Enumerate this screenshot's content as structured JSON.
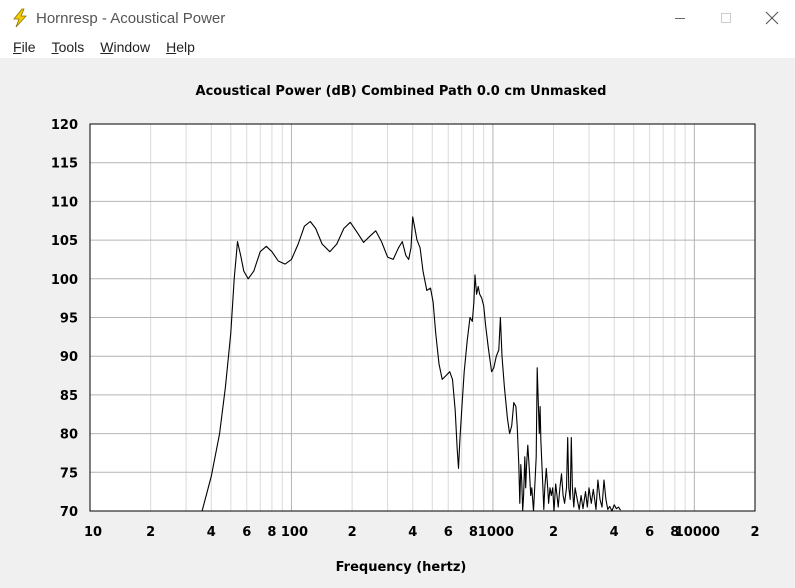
{
  "window": {
    "title": "Hornresp - Acoustical Power",
    "icon": "lightning-icon",
    "accent": "#f5d000"
  },
  "menu": {
    "items": [
      {
        "label": "File",
        "u": "F",
        "rest": "ile"
      },
      {
        "label": "Tools",
        "u": "T",
        "rest": "ools"
      },
      {
        "label": "Window",
        "u": "W",
        "rest": "indow"
      },
      {
        "label": "Help",
        "u": "H",
        "rest": "elp"
      }
    ]
  },
  "chart_data": {
    "type": "line",
    "title": "Acoustical Power (dB)   Combined   Path 0.0 cm   Unmasked",
    "xlabel": "Frequency (hertz)",
    "ylabel": "",
    "x_scale": "log",
    "xlim": [
      10,
      20000
    ],
    "ylim": [
      70,
      120
    ],
    "y_ticks": [
      "120",
      "115",
      "110",
      "105",
      "100",
      "95",
      "90",
      "85",
      "80",
      "75",
      "70"
    ],
    "x_ticks": [
      {
        "v": 10,
        "label": "10"
      },
      {
        "v": 20,
        "label": "2"
      },
      {
        "v": 40,
        "label": "4"
      },
      {
        "v": 60,
        "label": "6"
      },
      {
        "v": 80,
        "label": "8"
      },
      {
        "v": 100,
        "label": "100"
      },
      {
        "v": 200,
        "label": "2"
      },
      {
        "v": 400,
        "label": "4"
      },
      {
        "v": 600,
        "label": "6"
      },
      {
        "v": 800,
        "label": "8"
      },
      {
        "v": 1000,
        "label": "1000"
      },
      {
        "v": 2000,
        "label": "2"
      },
      {
        "v": 4000,
        "label": "4"
      },
      {
        "v": 6000,
        "label": "6"
      },
      {
        "v": 8000,
        "label": "8"
      },
      {
        "v": 10000,
        "label": "10000"
      },
      {
        "v": 20000,
        "label": "2"
      }
    ],
    "grid": true,
    "series": [
      {
        "color": "#000000",
        "points": [
          [
            36.0,
            70.0
          ],
          [
            40,
            74.5
          ],
          [
            44,
            80
          ],
          [
            47,
            86
          ],
          [
            50,
            93
          ],
          [
            52,
            100
          ],
          [
            54,
            104.8
          ],
          [
            56,
            103
          ],
          [
            58,
            101
          ],
          [
            61,
            100
          ],
          [
            65,
            101
          ],
          [
            70,
            103.5
          ],
          [
            75,
            104.2
          ],
          [
            80,
            103.5
          ],
          [
            86,
            102.3
          ],
          [
            93,
            101.9
          ],
          [
            100,
            102.5
          ],
          [
            108,
            104.5
          ],
          [
            116,
            106.8
          ],
          [
            124,
            107.4
          ],
          [
            132,
            106.5
          ],
          [
            142,
            104.5
          ],
          [
            155,
            103.5
          ],
          [
            168,
            104.5
          ],
          [
            182,
            106.5
          ],
          [
            196,
            107.3
          ],
          [
            212,
            106
          ],
          [
            228,
            104.7
          ],
          [
            245,
            105.5
          ],
          [
            262,
            106.2
          ],
          [
            280,
            104.8
          ],
          [
            300,
            102.8
          ],
          [
            320,
            102.5
          ],
          [
            340,
            104
          ],
          [
            355,
            104.8
          ],
          [
            370,
            103
          ],
          [
            382,
            102.5
          ],
          [
            392,
            104
          ],
          [
            400,
            108
          ],
          [
            410,
            106.5
          ],
          [
            420,
            105
          ],
          [
            435,
            104
          ],
          [
            450,
            101
          ],
          [
            470,
            98.5
          ],
          [
            490,
            98.8
          ],
          [
            505,
            97
          ],
          [
            520,
            93
          ],
          [
            540,
            89
          ],
          [
            560,
            87
          ],
          [
            585,
            87.5
          ],
          [
            610,
            88
          ],
          [
            630,
            87
          ],
          [
            650,
            83
          ],
          [
            665,
            78
          ],
          [
            675,
            75.5
          ],
          [
            685,
            79
          ],
          [
            700,
            83
          ],
          [
            720,
            88
          ],
          [
            745,
            92
          ],
          [
            770,
            95
          ],
          [
            790,
            94.5
          ],
          [
            805,
            97
          ],
          [
            815,
            100.5
          ],
          [
            830,
            98
          ],
          [
            845,
            99
          ],
          [
            860,
            98
          ],
          [
            880,
            97.5
          ],
          [
            900,
            96.5
          ],
          [
            920,
            94
          ],
          [
            950,
            91
          ],
          [
            985,
            88
          ],
          [
            1010,
            88.5
          ],
          [
            1040,
            90
          ],
          [
            1070,
            90.8
          ],
          [
            1090,
            95
          ],
          [
            1110,
            90
          ],
          [
            1140,
            86
          ],
          [
            1180,
            82
          ],
          [
            1210,
            80
          ],
          [
            1240,
            81
          ],
          [
            1270,
            84
          ],
          [
            1300,
            83.5
          ],
          [
            1320,
            81
          ],
          [
            1345,
            76
          ],
          [
            1360,
            71
          ],
          [
            1375,
            76
          ],
          [
            1390,
            74
          ],
          [
            1405,
            70
          ],
          [
            1420,
            72
          ],
          [
            1440,
            77
          ],
          [
            1455,
            73
          ],
          [
            1470,
            76
          ],
          [
            1490,
            78.5
          ],
          [
            1520,
            75
          ],
          [
            1540,
            72
          ],
          [
            1560,
            73
          ],
          [
            1590,
            70
          ],
          [
            1620,
            74
          ],
          [
            1640,
            77
          ],
          [
            1660,
            88.5
          ],
          [
            1680,
            84
          ],
          [
            1700,
            80
          ],
          [
            1715,
            83.5
          ],
          [
            1730,
            79
          ],
          [
            1750,
            76
          ],
          [
            1770,
            73
          ],
          [
            1790,
            70.2
          ],
          [
            1810,
            73
          ],
          [
            1840,
            75.5
          ],
          [
            1870,
            73
          ],
          [
            1890,
            71
          ],
          [
            1920,
            73
          ],
          [
            1950,
            72
          ],
          [
            1980,
            73
          ],
          [
            2010,
            70
          ],
          [
            2050,
            73.5
          ],
          [
            2080,
            72
          ],
          [
            2110,
            70.5
          ],
          [
            2150,
            73
          ],
          [
            2190,
            74.8
          ],
          [
            2230,
            72
          ],
          [
            2270,
            71
          ],
          [
            2320,
            73
          ],
          [
            2350,
            79.5
          ],
          [
            2380,
            73
          ],
          [
            2420,
            71.5
          ],
          [
            2450,
            79.5
          ],
          [
            2480,
            73
          ],
          [
            2520,
            70.5
          ],
          [
            2560,
            73
          ],
          [
            2620,
            71.5
          ],
          [
            2680,
            70.2
          ],
          [
            2740,
            72
          ],
          [
            2800,
            70.3
          ],
          [
            2880,
            72.5
          ],
          [
            2940,
            70.5
          ],
          [
            3000,
            73
          ],
          [
            3080,
            71
          ],
          [
            3150,
            72.8
          ],
          [
            3250,
            70.2
          ],
          [
            3320,
            74
          ],
          [
            3400,
            71.5
          ],
          [
            3480,
            70.5
          ],
          [
            3560,
            74
          ],
          [
            3640,
            71.5
          ],
          [
            3720,
            70.2
          ],
          [
            3800,
            70.6
          ],
          [
            3900,
            70
          ],
          [
            4000,
            70.8
          ],
          [
            4100,
            70.3
          ],
          [
            4200,
            70.5
          ],
          [
            4300,
            70.1
          ]
        ]
      }
    ]
  }
}
